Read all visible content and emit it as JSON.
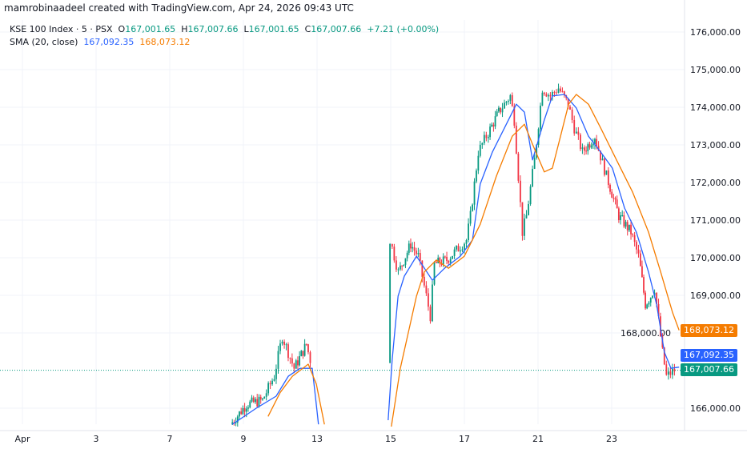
{
  "credit": "mamrobinaadeel created with TradingView.com, Apr 24, 2026 09:43 UTC",
  "legend": {
    "symbol": "KSE 100 Index · 5 · PSX",
    "open_label": "O",
    "open": "167,001.65",
    "high_label": "H",
    "high": "167,007.66",
    "low_label": "L",
    "low": "167,001.65",
    "close_label": "C",
    "close": "167,007.66",
    "change": "+7.21 (+0.00%)",
    "sma_label": "SMA (20, close)",
    "sma_value_1": "167,092.35",
    "sma_value_2": "168,073.12"
  },
  "price_labels": {
    "sma_2": "168,073.12",
    "sma_1": "167,092.35",
    "last": "167,007.66"
  },
  "colors": {
    "up": "#089981",
    "down": "#f23645",
    "sma_1": "#2962ff",
    "sma_2": "#f57c00",
    "grid": "#f0f3fa",
    "text": "#131722"
  },
  "chart_data": {
    "type": "candlestick",
    "y_ticks": [
      "176,000.00",
      "175,000.00",
      "174,000.00",
      "173,000.00",
      "172,000.00",
      "171,000.00",
      "170,000.00",
      "169,000.00",
      "168,000.00",
      "166,000.00"
    ],
    "y_tick_values": [
      176000,
      175000,
      174000,
      173000,
      172000,
      171000,
      170000,
      169000,
      168000,
      166000
    ],
    "x_ticks": [
      {
        "label": "Apr",
        "i": 0
      },
      {
        "label": "3",
        "i": 2
      },
      {
        "label": "7",
        "i": 4
      },
      {
        "label": "9",
        "i": 6
      },
      {
        "label": "13",
        "i": 8
      },
      {
        "label": "15",
        "i": 10
      },
      {
        "label": "17",
        "i": 12
      },
      {
        "label": "21",
        "i": 14
      },
      {
        "label": "23",
        "i": 16
      }
    ],
    "ylim": [
      165500,
      176500
    ],
    "last_price": 167007.66,
    "price_path": [
      [
        5.7,
        165570
      ],
      [
        6.13,
        166100
      ],
      [
        6.57,
        166210
      ],
      [
        6.89,
        166850
      ],
      [
        7.11,
        167910
      ],
      [
        7.43,
        167060
      ],
      [
        7.76,
        167700
      ],
      [
        7.87,
        167280
      ],
      null,
      [
        9.98,
        165780
      ],
      [
        10.04,
        170470
      ],
      [
        10.26,
        169620
      ],
      [
        10.59,
        170360
      ],
      [
        10.8,
        170040
      ],
      [
        11.02,
        168980
      ],
      [
        11.13,
        168450
      ],
      [
        11.24,
        169830
      ],
      [
        11.57,
        169940
      ],
      [
        11.89,
        170250
      ],
      [
        12.11,
        170470
      ],
      [
        12.22,
        171110
      ],
      [
        12.43,
        172810
      ],
      [
        12.65,
        173230
      ],
      [
        12.98,
        173870
      ],
      [
        13.3,
        174300
      ],
      [
        13.41,
        173660
      ],
      [
        13.63,
        170680
      ],
      [
        13.74,
        171110
      ],
      [
        13.96,
        172600
      ],
      [
        14.17,
        174510
      ],
      [
        14.39,
        174300
      ],
      [
        14.61,
        174510
      ],
      [
        14.87,
        174080
      ],
      [
        15.04,
        173450
      ],
      [
        15.26,
        172810
      ],
      [
        15.59,
        173230
      ],
      [
        15.91,
        172170
      ],
      [
        16.24,
        171110
      ],
      [
        16.57,
        170680
      ],
      [
        16.78,
        170040
      ],
      [
        16.96,
        168760
      ],
      [
        17.11,
        168980
      ],
      [
        17.22,
        169190
      ],
      [
        17.43,
        167490
      ],
      [
        17.54,
        166850
      ],
      [
        17.76,
        167008
      ]
    ],
    "series": [
      {
        "name": "SMA (20, close)",
        "color": "#2962ff",
        "points": [
          [
            5.7,
            165570
          ],
          [
            6.35,
            166000
          ],
          [
            6.89,
            166320
          ],
          [
            7.22,
            166850
          ],
          [
            7.54,
            167060
          ],
          [
            7.87,
            167060
          ],
          [
            8.04,
            165570
          ],
          null,
          [
            9.93,
            165680
          ],
          [
            10.04,
            167280
          ],
          [
            10.2,
            168980
          ],
          [
            10.37,
            169510
          ],
          [
            10.7,
            170040
          ],
          [
            11.13,
            169400
          ],
          [
            11.46,
            169720
          ],
          [
            11.89,
            170040
          ],
          [
            12.22,
            170470
          ],
          [
            12.43,
            171960
          ],
          [
            12.76,
            172810
          ],
          [
            13.09,
            173450
          ],
          [
            13.41,
            174080
          ],
          [
            13.63,
            173870
          ],
          [
            13.85,
            172600
          ],
          [
            14.17,
            173660
          ],
          [
            14.39,
            174300
          ],
          [
            14.72,
            174340
          ],
          [
            15.04,
            173980
          ],
          [
            15.37,
            173230
          ],
          [
            15.7,
            172810
          ],
          [
            16.02,
            172380
          ],
          [
            16.35,
            171320
          ],
          [
            16.67,
            170680
          ],
          [
            17.0,
            169620
          ],
          [
            17.22,
            168760
          ],
          [
            17.43,
            167490
          ],
          [
            17.61,
            167060
          ],
          [
            17.83,
            167092
          ]
        ]
      },
      {
        "color": "#f57c00",
        "points": [
          [
            6.67,
            165780
          ],
          [
            7.0,
            166420
          ],
          [
            7.33,
            166850
          ],
          [
            7.76,
            167170
          ],
          [
            7.98,
            166640
          ],
          [
            8.2,
            165570
          ],
          null,
          [
            10.0,
            165400
          ],
          [
            10.26,
            167060
          ],
          [
            10.7,
            168980
          ],
          [
            10.91,
            169620
          ],
          [
            11.24,
            169940
          ],
          [
            11.57,
            169720
          ],
          [
            12.0,
            170040
          ],
          [
            12.43,
            170890
          ],
          [
            12.87,
            172170
          ],
          [
            13.3,
            173230
          ],
          [
            13.63,
            173550
          ],
          [
            13.85,
            173020
          ],
          [
            14.17,
            172280
          ],
          [
            14.39,
            172380
          ],
          [
            14.61,
            173230
          ],
          [
            14.83,
            174080
          ],
          [
            15.04,
            174340
          ],
          [
            15.37,
            174080
          ],
          [
            15.7,
            173450
          ],
          [
            16.13,
            172600
          ],
          [
            16.57,
            171740
          ],
          [
            17.0,
            170680
          ],
          [
            17.33,
            169620
          ],
          [
            17.65,
            168550
          ],
          [
            17.83,
            168073
          ]
        ]
      }
    ],
    "grid": true
  }
}
